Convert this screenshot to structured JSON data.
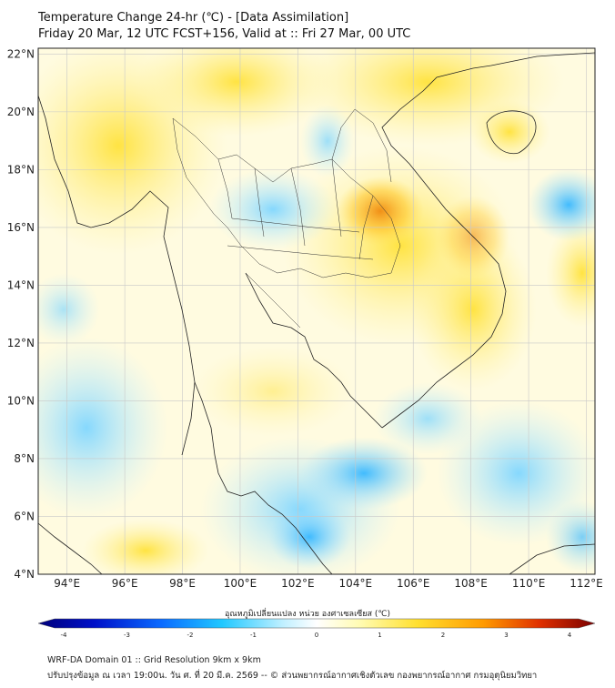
{
  "header": {
    "title_line1": "Temperature Change 24-hr (℃) - [Data Assimilation]",
    "title_line2": "Friday 20 Mar, 12 UTC FCST+156, Valid at :: Fri 27 Mar, 00 UTC"
  },
  "map": {
    "lat_labels": [
      "22°N",
      "20°N",
      "18°N",
      "16°N",
      "14°N",
      "12°N",
      "10°N",
      "8°N",
      "6°N",
      "4°N"
    ],
    "lon_labels": [
      "94°E",
      "96°E",
      "98°E",
      "100°E",
      "102°E",
      "104°E",
      "106°E",
      "108°E",
      "110°E",
      "112°E"
    ],
    "grid": true,
    "extent": {
      "lon": [
        93,
        112.3
      ],
      "lat": [
        4,
        22.2
      ]
    }
  },
  "colorbar": {
    "title": "อุณหภูมิเปลี่ยนแปลง หน่วย องศาเซลเซียส (℃)",
    "ticks": [
      "-4",
      "-3",
      "-2",
      "-1",
      "0",
      "1",
      "2",
      "3",
      "4"
    ],
    "range": [
      -4,
      4
    ],
    "colors": [
      "#00007a",
      "#0010c8",
      "#0a6aff",
      "#20c8ff",
      "#c0f0ff",
      "#ffffff",
      "#fffbb0",
      "#ffe030",
      "#ff9a00",
      "#e03000",
      "#7a0000"
    ]
  },
  "footer": {
    "line1": "WRF-DA Domain 01 :: Grid Resolution 9km x 9km",
    "line2": "ปรับปรุงข้อมูล ณ เวลา 19:00น. วัน ศ. ที่ 20 มี.ค. 2569 -- © ส่วนพยากรณ์อากาศเชิงตัวเลข กองพยากรณ์อากาศ กรมอุตุนิยมวิทยา"
  }
}
